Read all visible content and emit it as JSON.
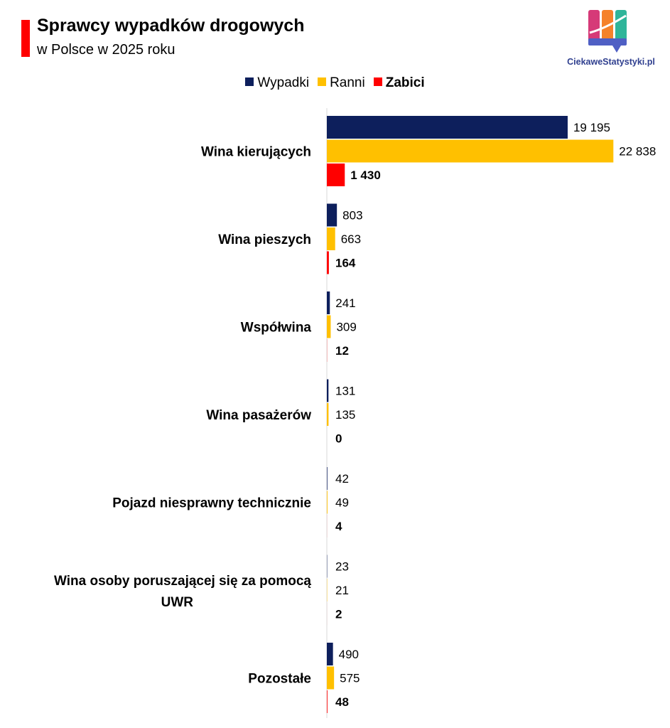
{
  "header": {
    "title": "Sprawcy wypadków drogowych",
    "subtitle": "w Polsce w 2025 roku",
    "accent_color": "#ff0000"
  },
  "logo": {
    "text": "CiekaweStatystyki.pl",
    "icon": "bar-chart-speech-bubble-icon"
  },
  "chart_data": {
    "type": "bar",
    "orientation": "horizontal",
    "title": "Sprawcy wypadków drogowych",
    "subtitle": "w Polsce w 2025 roku",
    "legend_position": "top",
    "grid": false,
    "xlim": [
      0,
      23500
    ],
    "categories": [
      "Wina kierujących",
      "Wina pieszych",
      "Współwina",
      "Wina pasażerów",
      "Pojazd niesprawny technicznie",
      "Wina osoby poruszającej się za pomocą UWR",
      "Pozostałe"
    ],
    "series": [
      {
        "name": "Wypadki",
        "color": "#0d1f5c",
        "bold": false,
        "values": [
          19195,
          803,
          241,
          131,
          42,
          23,
          490
        ],
        "labels": [
          "19 195",
          "803",
          "241",
          "131",
          "42",
          "23",
          "490"
        ]
      },
      {
        "name": "Ranni",
        "color": "#ffc000",
        "bold": false,
        "values": [
          22838,
          663,
          309,
          135,
          49,
          21,
          575
        ],
        "labels": [
          "22 838",
          "663",
          "309",
          "135",
          "49",
          "21",
          "575"
        ]
      },
      {
        "name": "Zabici",
        "color": "#ff0000",
        "bold": true,
        "values": [
          1430,
          164,
          12,
          0,
          4,
          2,
          48
        ],
        "labels": [
          "1 430",
          "164",
          "12",
          "0",
          "4",
          "2",
          "48"
        ]
      }
    ]
  }
}
